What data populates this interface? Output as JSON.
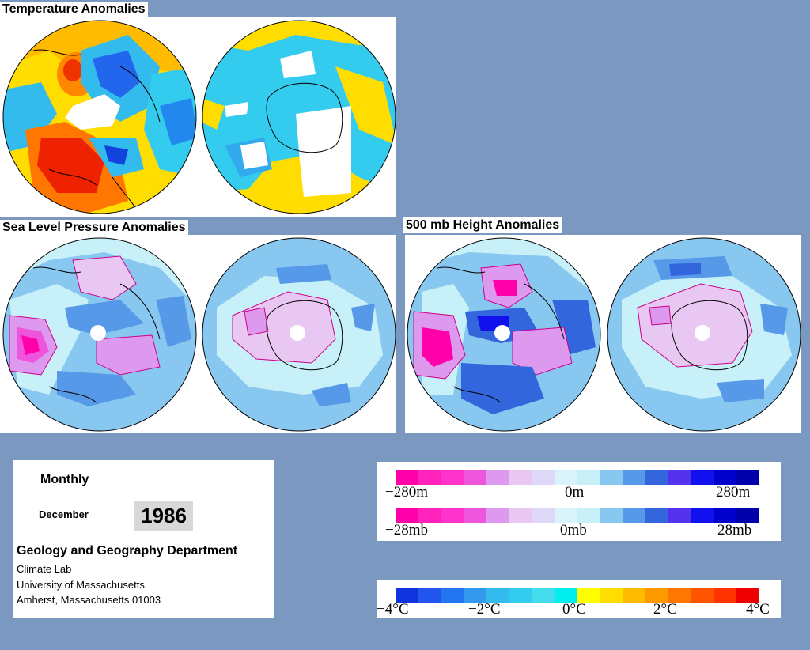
{
  "panels": {
    "temperature": {
      "title": "Temperature Anomalies"
    },
    "slp": {
      "title": "Sea Level Pressure Anomalies"
    },
    "height": {
      "title": "500 mb Height Anomalies"
    }
  },
  "info": {
    "period": "Monthly",
    "month": "December",
    "year": "1986",
    "department": "Geology and Geography Department",
    "lab": "Climate Lab",
    "university": "University of Massachusetts",
    "address": "Amherst, Massachusetts 01003"
  },
  "scales": {
    "height": {
      "labels": [
        "−280m",
        "0m",
        "280m"
      ]
    },
    "pressure": {
      "labels": [
        "−28mb",
        "0mb",
        "28mb"
      ]
    },
    "temperature": {
      "labels": [
        "−4°C",
        "−2°C",
        "0°C",
        "2°C",
        "4°C"
      ]
    }
  },
  "colors": {
    "background": "#7a98c0",
    "pressure_scale": [
      "#ff00aa",
      "#ff22bb",
      "#ff33cc",
      "#ee55dd",
      "#dd99ee",
      "#e8c8f2",
      "#ddd8f8",
      "#d8f4fa",
      "#c8f0f8",
      "#88c8f0",
      "#5599e8",
      "#3366dd",
      "#5533ee",
      "#1111ee",
      "#0000cc",
      "#0000aa"
    ],
    "temperature_scale": [
      "#1133dd",
      "#2255ee",
      "#2277f0",
      "#3399ee",
      "#33bbee",
      "#33ccee",
      "#44ddee",
      "#00eeee",
      "#ffff00",
      "#ffdd00",
      "#ffbb00",
      "#ff9900",
      "#ff7700",
      "#ff5500",
      "#ff3300",
      "#ee0000"
    ]
  }
}
